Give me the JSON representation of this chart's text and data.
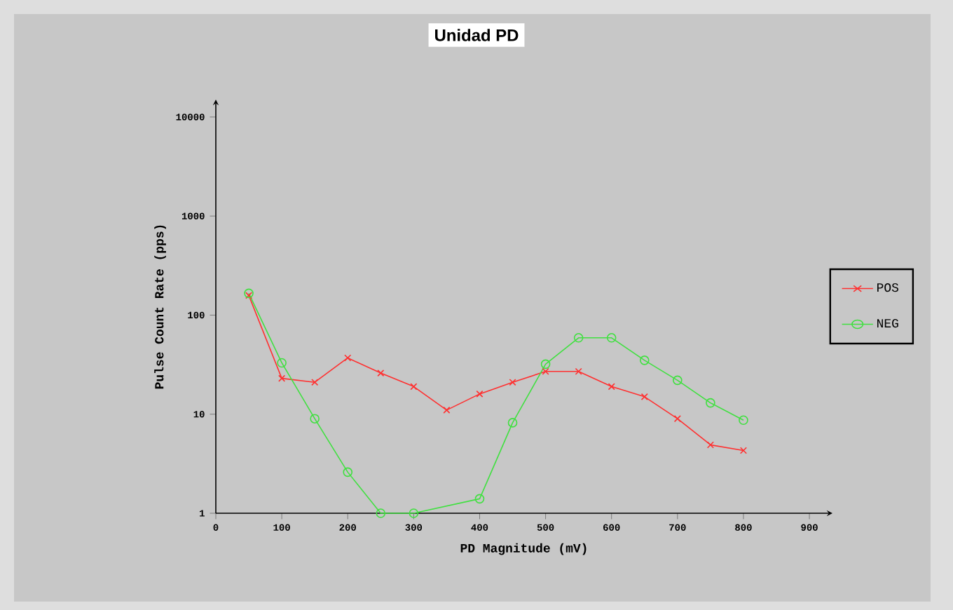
{
  "chart_data": {
    "type": "line",
    "title": "Unidad PD",
    "xlabel": "PD Magnitude (mV)",
    "ylabel": "Pulse Count Rate (pps)",
    "series": [
      {
        "name": "POS",
        "color": "#ff3030",
        "marker": "cross",
        "x": [
          50,
          100,
          150,
          200,
          250,
          300,
          350,
          400,
          450,
          500,
          550,
          600,
          650,
          700,
          750,
          800
        ],
        "values": [
          158,
          23,
          21,
          37,
          26,
          19,
          11,
          16,
          21,
          27,
          27,
          19,
          15,
          9,
          4.9,
          4.3
        ]
      },
      {
        "name": "NEG",
        "color": "#40e040",
        "marker": "circle",
        "x": [
          50,
          100,
          150,
          200,
          250,
          300,
          400,
          450,
          500,
          550,
          600,
          650,
          700,
          750,
          800
        ],
        "values": [
          166,
          33,
          9,
          2.6,
          1,
          1,
          1.4,
          8.2,
          32,
          59,
          59,
          35,
          22,
          13,
          8.7
        ]
      }
    ],
    "log": "y",
    "xlim": [
      0,
      935
    ],
    "ylim": [
      1,
      15000
    ],
    "xticks": [
      0,
      100,
      200,
      300,
      400,
      500,
      600,
      700,
      800,
      900
    ],
    "yticks": [
      1,
      10,
      100,
      1000,
      10000
    ],
    "legend": "right",
    "grid": false
  }
}
